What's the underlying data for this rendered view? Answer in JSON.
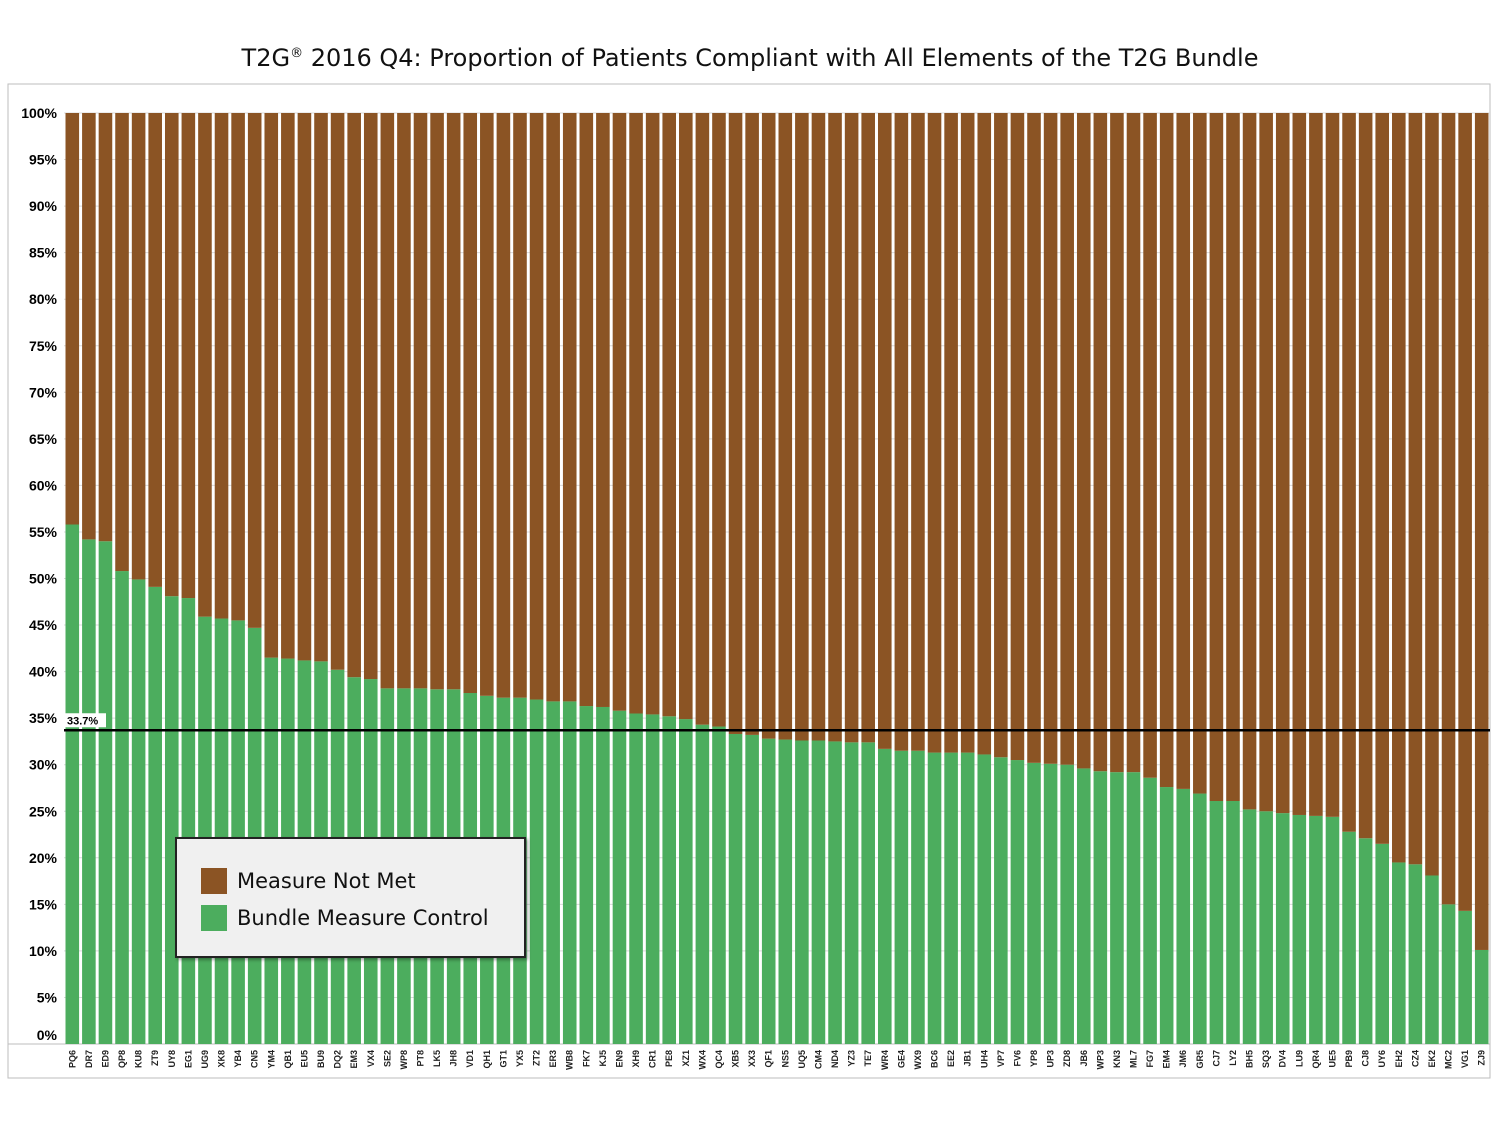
{
  "chart_data": {
    "type": "bar",
    "stacked": true,
    "title": "T2G® 2016 Q4: Proportion of Patients Compliant with All Elements of the T2G Bundle",
    "title_main": "T2G",
    "title_sup": "®",
    "title_rest": " 2016 Q4: Proportion of Patients Compliant with All Elements of the T2G Bundle",
    "ylim": [
      0,
      100
    ],
    "yticks": [
      "0%",
      "5%",
      "10%",
      "15%",
      "20%",
      "25%",
      "30%",
      "35%",
      "40%",
      "45%",
      "50%",
      "55%",
      "60%",
      "65%",
      "70%",
      "75%",
      "80%",
      "85%",
      "90%",
      "95%",
      "100%"
    ],
    "ytick_values": [
      0,
      5,
      10,
      15,
      20,
      25,
      30,
      35,
      40,
      45,
      50,
      55,
      60,
      65,
      70,
      75,
      80,
      85,
      90,
      95,
      100
    ],
    "grid": true,
    "legend_placement": "bottom-left",
    "reference_line": {
      "value": 33.7,
      "label": "33.7%",
      "color": "#000000"
    },
    "categories": [
      "PQ6",
      "DR7",
      "ED9",
      "QP8",
      "KU8",
      "ZT9",
      "UY8",
      "EG1",
      "UG9",
      "XK8",
      "YB4",
      "CN5",
      "YM4",
      "QB1",
      "EU5",
      "BU9",
      "DQ2",
      "EM3",
      "VX4",
      "SE2",
      "WP8",
      "PT8",
      "LK5",
      "JH8",
      "VD1",
      "QH1",
      "GT1",
      "YX5",
      "ZT2",
      "ER3",
      "WB8",
      "FK7",
      "KJ5",
      "EN9",
      "XH9",
      "CR1",
      "PE8",
      "XZ1",
      "WX4",
      "QC4",
      "XB5",
      "XX3",
      "QF1",
      "NS5",
      "UQ5",
      "CM4",
      "ND4",
      "YZ3",
      "TE7",
      "WR4",
      "GE4",
      "WX9",
      "BC6",
      "EE2",
      "JB1",
      "UH4",
      "VP7",
      "FV6",
      "YP8",
      "UP3",
      "ZD8",
      "JB6",
      "WP3",
      "KN3",
      "ML7",
      "FG7",
      "EM4",
      "JM6",
      "GR5",
      "CJ7",
      "LY2",
      "BH5",
      "SQ3",
      "DV4",
      "LU9",
      "QR4",
      "UE5",
      "PB9",
      "CJ8",
      "UY6",
      "EH2",
      "CZ4",
      "EK2",
      "MC2",
      "VG1",
      "ZJ9"
    ],
    "series": [
      {
        "name": "Bundle Measure Control",
        "color": "#4cad5e",
        "values": [
          55.8,
          54.2,
          54.0,
          50.8,
          49.9,
          49.1,
          48.1,
          47.9,
          45.9,
          45.7,
          45.5,
          44.7,
          41.5,
          41.4,
          41.2,
          41.1,
          40.2,
          39.4,
          39.2,
          38.2,
          38.2,
          38.2,
          38.1,
          38.1,
          37.7,
          37.4,
          37.2,
          37.2,
          37.0,
          36.8,
          36.8,
          36.3,
          36.2,
          35.8,
          35.5,
          35.4,
          35.2,
          34.9,
          34.3,
          34.1,
          33.3,
          33.2,
          32.8,
          32.7,
          32.6,
          32.6,
          32.5,
          32.4,
          32.4,
          31.7,
          31.5,
          31.5,
          31.3,
          31.3,
          31.3,
          31.1,
          30.8,
          30.5,
          30.2,
          30.1,
          30.0,
          29.6,
          29.3,
          29.2,
          29.2,
          28.6,
          27.6,
          27.4,
          26.9,
          26.1,
          26.1,
          25.2,
          25.0,
          24.8,
          24.6,
          24.5,
          24.4,
          22.8,
          22.1,
          21.5,
          19.5,
          19.3,
          18.1,
          15.0,
          14.3,
          10.1
        ]
      },
      {
        "name": "Measure Not Met",
        "color": "#8b5424",
        "values": [
          44.2,
          45.8,
          46.0,
          49.2,
          50.1,
          50.9,
          51.9,
          52.1,
          54.1,
          54.3,
          54.5,
          55.3,
          58.5,
          58.6,
          58.8,
          58.9,
          59.8,
          60.6,
          60.8,
          61.8,
          61.8,
          61.8,
          61.9,
          61.9,
          62.3,
          62.6,
          62.8,
          62.8,
          63.0,
          63.2,
          63.2,
          63.7,
          63.8,
          64.2,
          64.5,
          64.6,
          64.8,
          65.1,
          65.7,
          65.9,
          66.7,
          66.8,
          67.2,
          67.3,
          67.4,
          67.4,
          67.5,
          67.6,
          67.6,
          68.3,
          68.5,
          68.5,
          68.7,
          68.7,
          68.7,
          68.9,
          69.2,
          69.5,
          69.8,
          69.9,
          70.0,
          70.4,
          70.7,
          70.8,
          70.8,
          71.4,
          72.4,
          72.6,
          73.1,
          73.9,
          73.9,
          74.8,
          75.0,
          75.2,
          75.4,
          75.5,
          75.6,
          77.2,
          77.9,
          78.5,
          80.5,
          80.7,
          81.9,
          85.0,
          85.7,
          89.9
        ]
      }
    ]
  },
  "legend": {
    "items": [
      {
        "label": "Measure Not Met",
        "color": "#8b5424"
      },
      {
        "label": "Bundle Measure Control",
        "color": "#4cad5e"
      }
    ]
  }
}
